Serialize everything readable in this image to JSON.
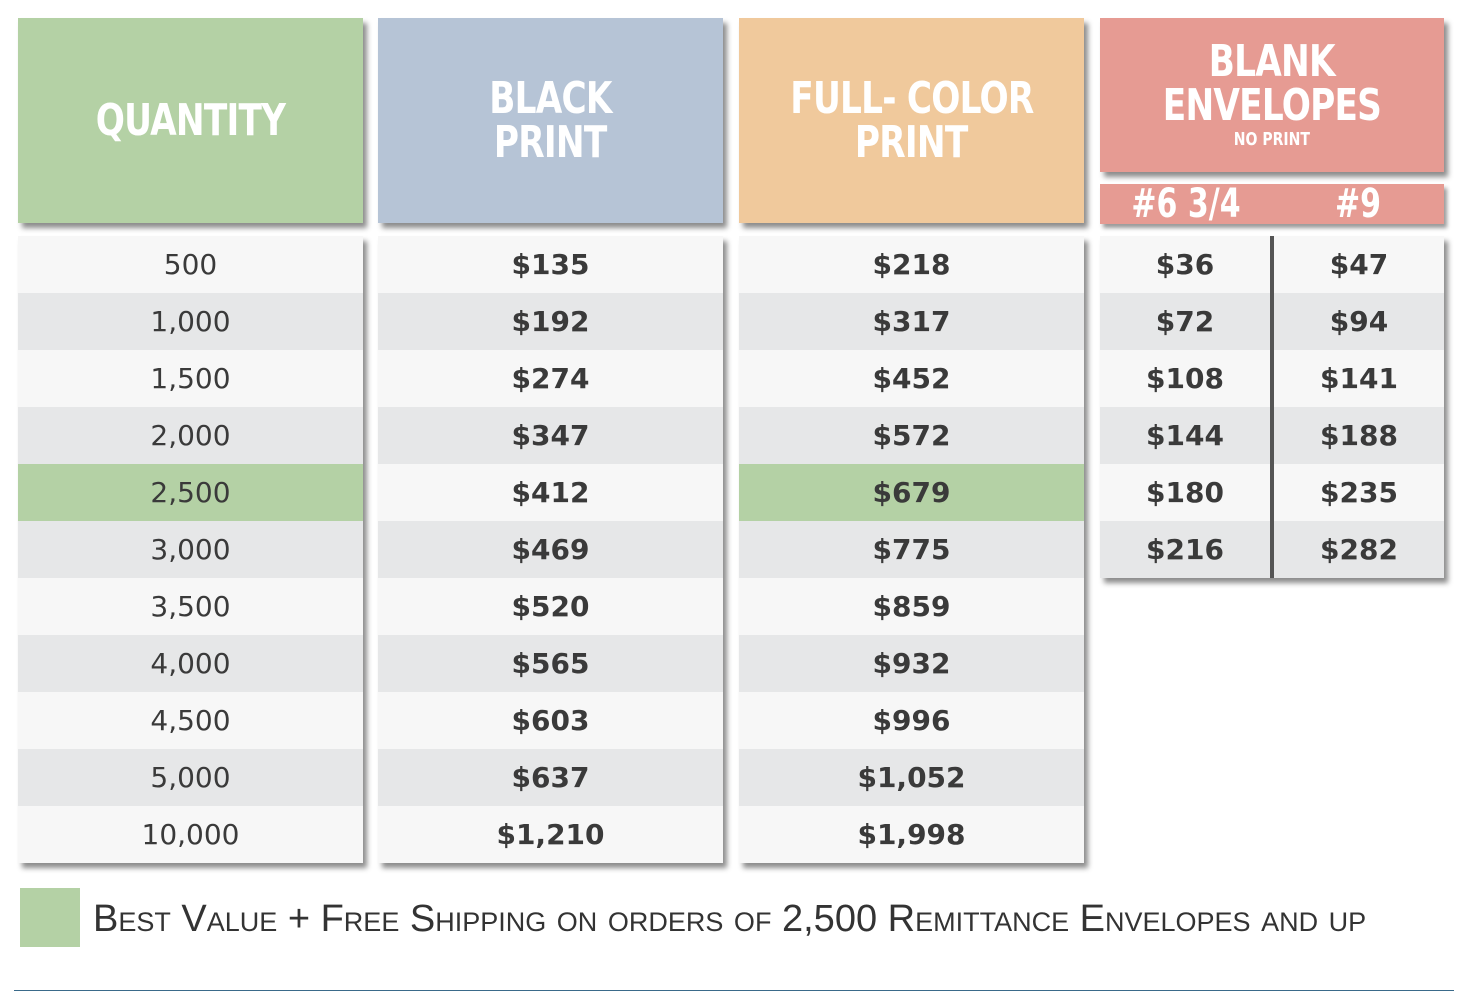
{
  "headers": {
    "quantity": "QUANTITY",
    "black_line1": "BLACK",
    "black_line2": "PRINT",
    "color_line1": "FULL- COLOR",
    "color_line2": "PRINT",
    "blank_line1": "BLANK",
    "blank_line2": "ENVELOPES",
    "blank_sub": "NO PRINT",
    "env_size_1": "#6 3/4",
    "env_size_2": "#9"
  },
  "quantities": [
    "500",
    "1,000",
    "1,500",
    "2,000",
    "2,500",
    "3,000",
    "3,500",
    "4,000",
    "4,500",
    "5,000",
    "10,000"
  ],
  "black_print": [
    "$135",
    "$192",
    "$274",
    "$347",
    "$412",
    "$469",
    "$520",
    "$565",
    "$603",
    "$637",
    "$1,210"
  ],
  "full_color": [
    "$218",
    "$317",
    "$452",
    "$572",
    "$679",
    "$775",
    "$859",
    "$932",
    "$996",
    "$1,052",
    "$1,998"
  ],
  "blank_6_3_4": [
    "$36",
    "$72",
    "$108",
    "$144",
    "$180",
    "$216"
  ],
  "blank_9": [
    "$47",
    "$94",
    "$141",
    "$188",
    "$235",
    "$282"
  ],
  "highlight_row": 4,
  "legend": "Best Value + Free Shipping on orders of 2,500 Remittance Envelopes and up",
  "colors": {
    "quantity": "#b4d1a5",
    "black": "#b6c4d6",
    "color": "#f0c99c",
    "blank": "#e69b93",
    "highlight": "#b4d1a5"
  }
}
